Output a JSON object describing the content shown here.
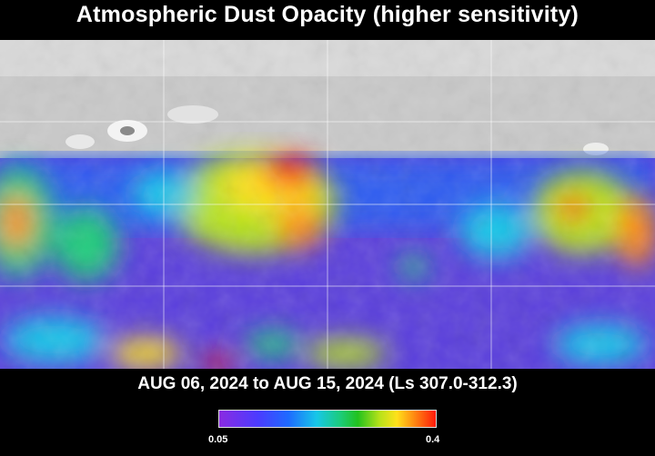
{
  "title": "Atmospheric Dust Opacity (higher sensitivity)",
  "date_range": "AUG 06, 2024 to AUG 15, 2024 (Ls 307.0-312.3)",
  "colorbar": {
    "min_label": "0.05",
    "max_label": "0.4",
    "colors": [
      "#8a2be2",
      "#4b3cff",
      "#1e6bff",
      "#17c7e8",
      "#1ccc7a",
      "#22c21e",
      "#b6e21a",
      "#ffe11a",
      "#ff8a12",
      "#ff1a0a"
    ]
  },
  "map": {
    "no_data_region": "grayscale topography, northern band",
    "grid_lines": true
  }
}
